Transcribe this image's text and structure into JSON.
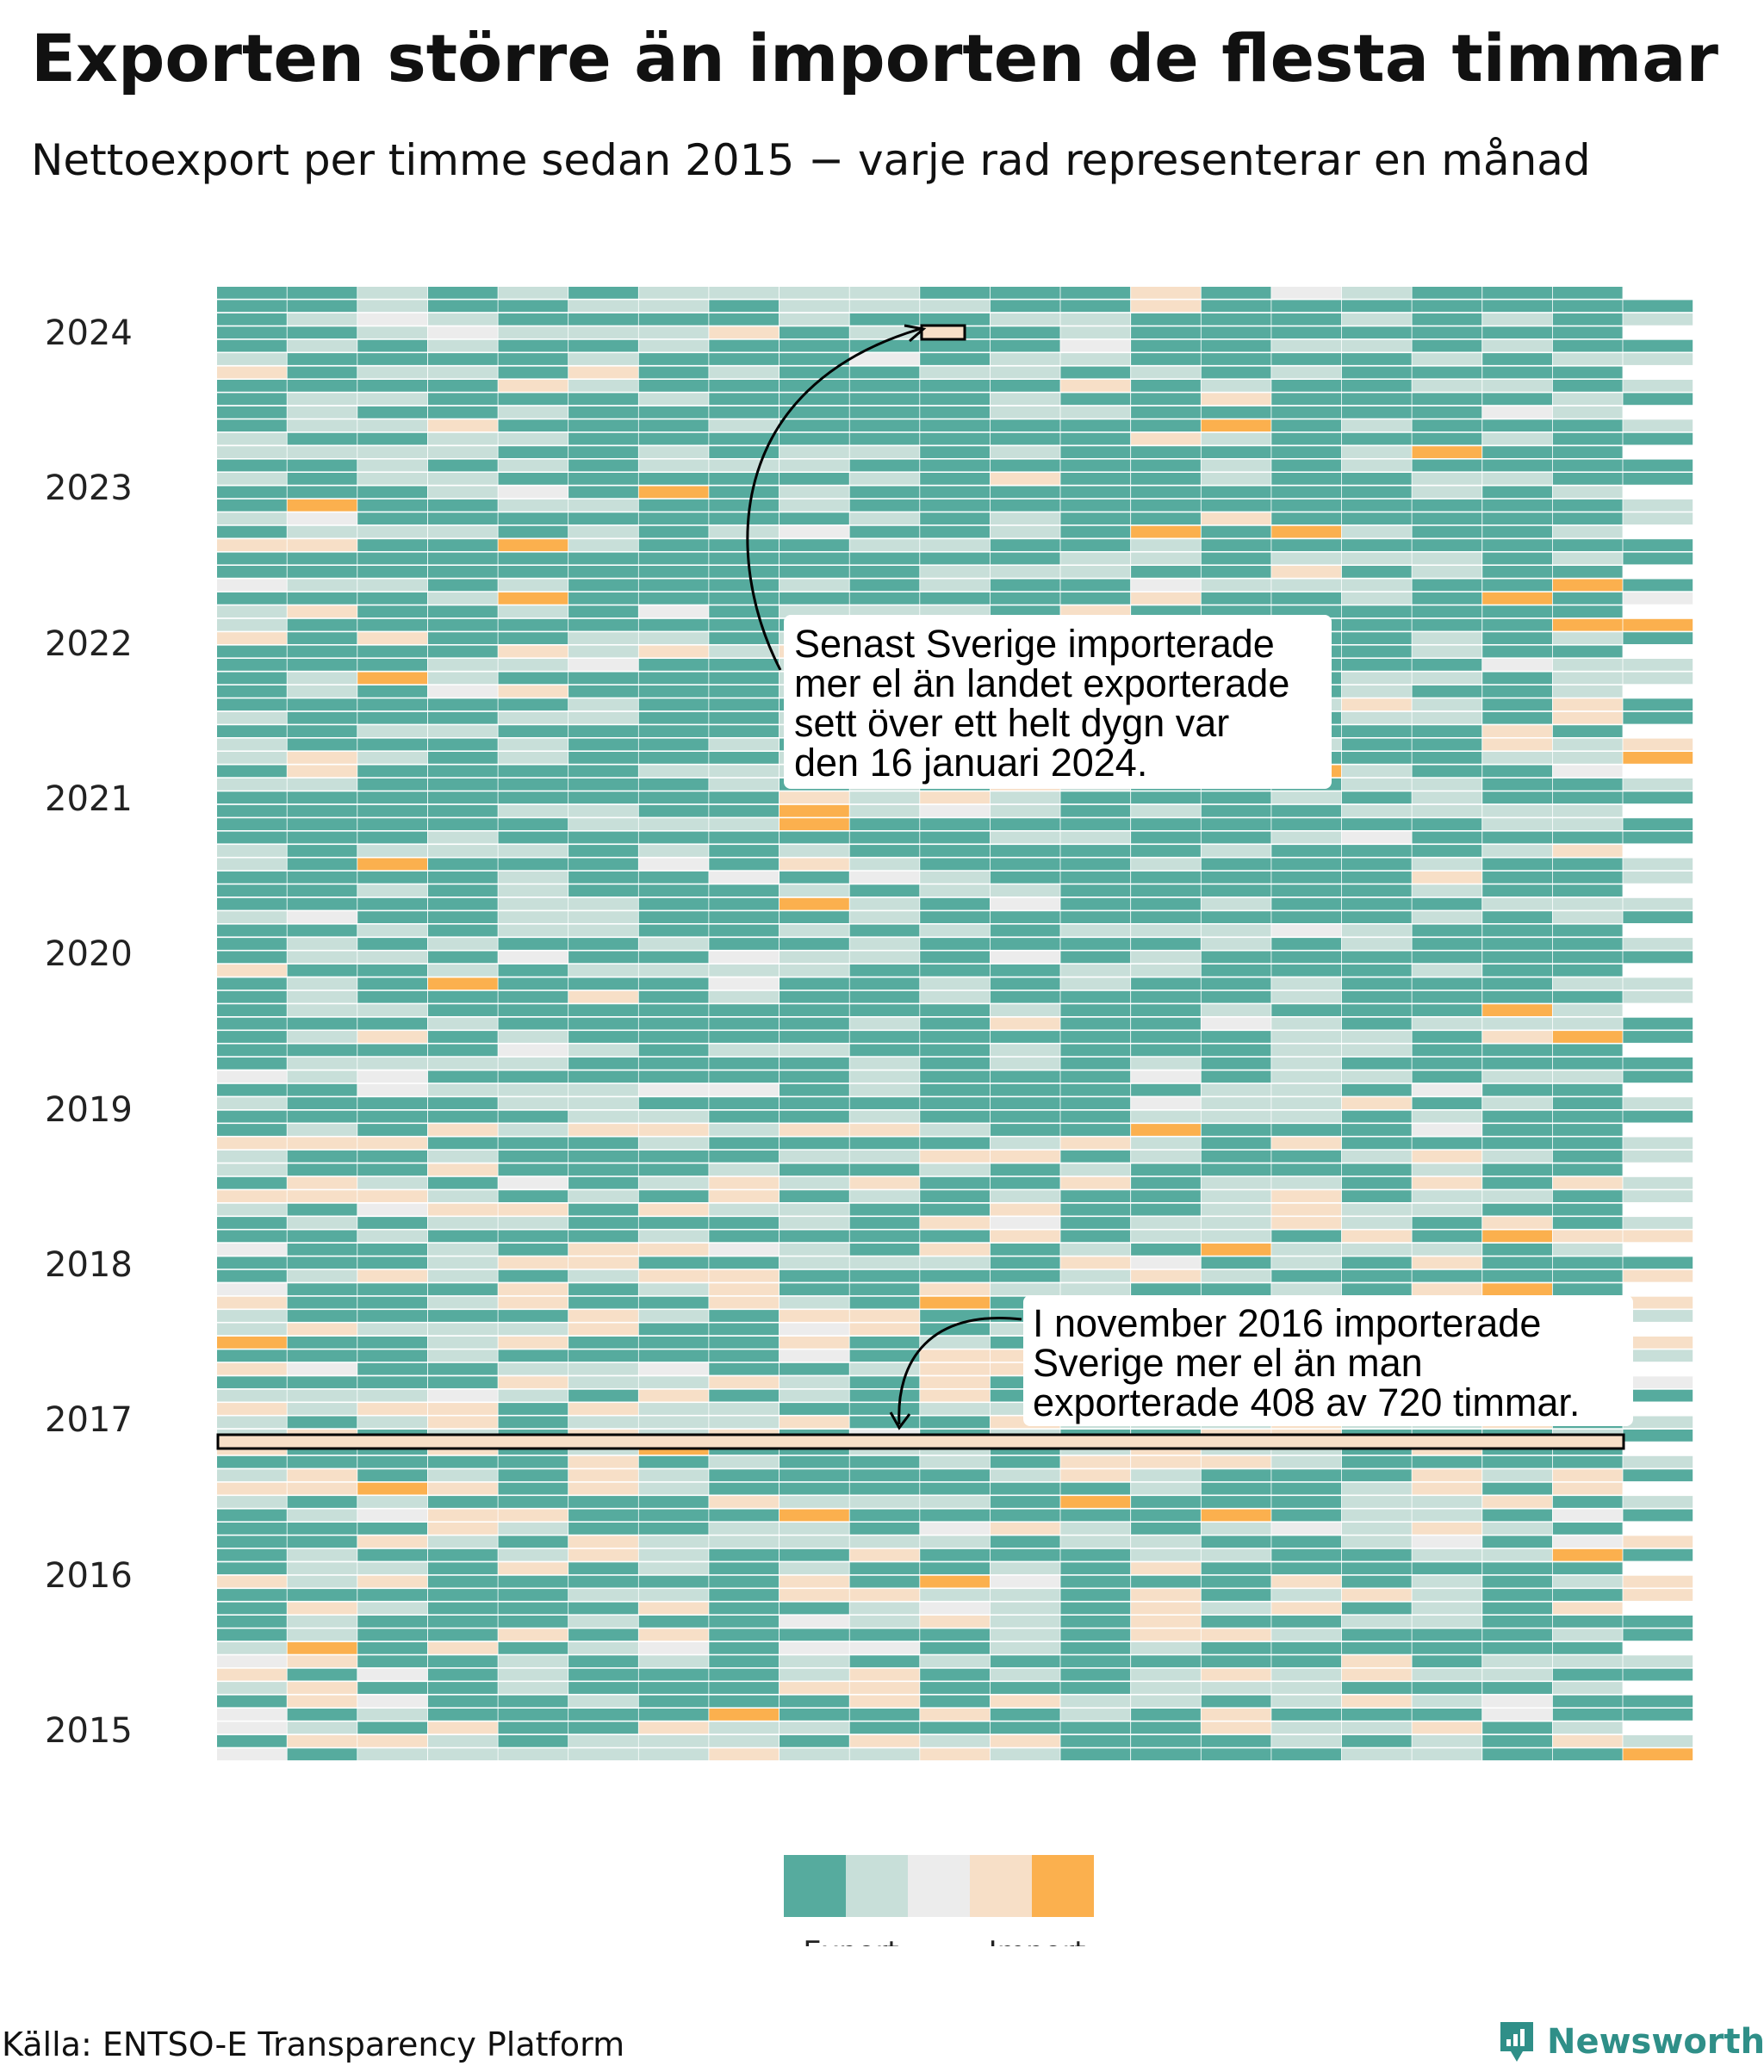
{
  "chart_data": {
    "type": "heatmap",
    "title": "Exporten större än importen de flesta timmar",
    "subtitle": "Nettoexport per timme sedan 2015 − varje rad representerar en månad",
    "x_unit": "timme i månaden",
    "y_unit": "månad",
    "y_ticks": [
      "2015",
      "2016",
      "2017",
      "2018",
      "2019",
      "2020",
      "2021",
      "2022",
      "2023",
      "2024"
    ],
    "rows": 111,
    "hours_per_row_max": 744,
    "color_classes": [
      {
        "name": "export-stark",
        "color": "#56ab9e"
      },
      {
        "name": "export-svag",
        "color": "#c8dfd9"
      },
      {
        "name": "neutral",
        "color": "#ececec"
      },
      {
        "name": "import-svag",
        "color": "#f7dfc7"
      },
      {
        "name": "import-stark",
        "color": "#fbb04e"
      }
    ],
    "legend": {
      "export_label": "Export",
      "import_label": "Import"
    },
    "annotations": [
      {
        "id": "jan-2024",
        "lines": [
          "Senast Sverige importerade",
          "mer el än landet exporterade",
          "sett över ett helt dygn var",
          "den 16 januari 2024."
        ]
      },
      {
        "id": "nov-2016",
        "lines": [
          "I november 2016 importerade",
          "Sverige mer el än man",
          "exporterade 408 av 720 timmar."
        ]
      }
    ]
  },
  "source": "Källa: ENTSO-E Transparency Platform",
  "brand": "Newsworthy"
}
